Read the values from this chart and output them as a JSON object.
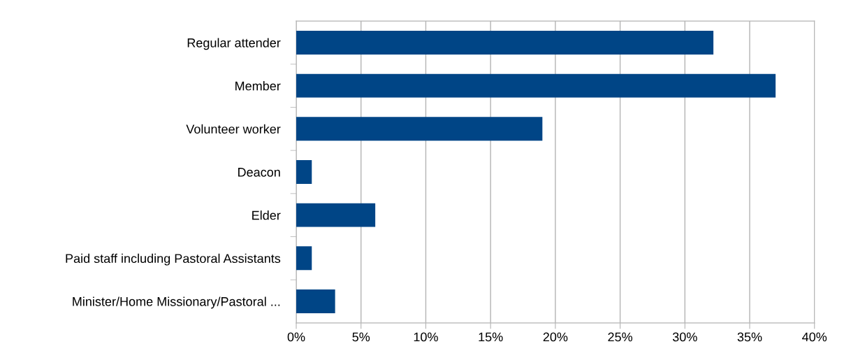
{
  "chart_data": {
    "type": "bar",
    "orientation": "horizontal",
    "categories": [
      "Regular attender",
      "Member",
      "Volunteer worker",
      "Deacon",
      "Elder",
      "Paid staff including Pastoral Assistants",
      "Minister/Home Missionary/Pastoral ..."
    ],
    "values": [
      32.2,
      37.0,
      19.0,
      1.2,
      6.1,
      1.2,
      3.0
    ],
    "color": "#004586",
    "xlim": [
      0,
      40
    ],
    "xticks": [
      {
        "value": 0,
        "label": "0%"
      },
      {
        "value": 5,
        "label": "5%"
      },
      {
        "value": 10,
        "label": "10%"
      },
      {
        "value": 15,
        "label": "15%"
      },
      {
        "value": 20,
        "label": "20%"
      },
      {
        "value": 25,
        "label": "25%"
      },
      {
        "value": 30,
        "label": "30%"
      },
      {
        "value": 35,
        "label": "35%"
      },
      {
        "value": 40,
        "label": "40%"
      }
    ],
    "grid": "x",
    "legend": false
  }
}
